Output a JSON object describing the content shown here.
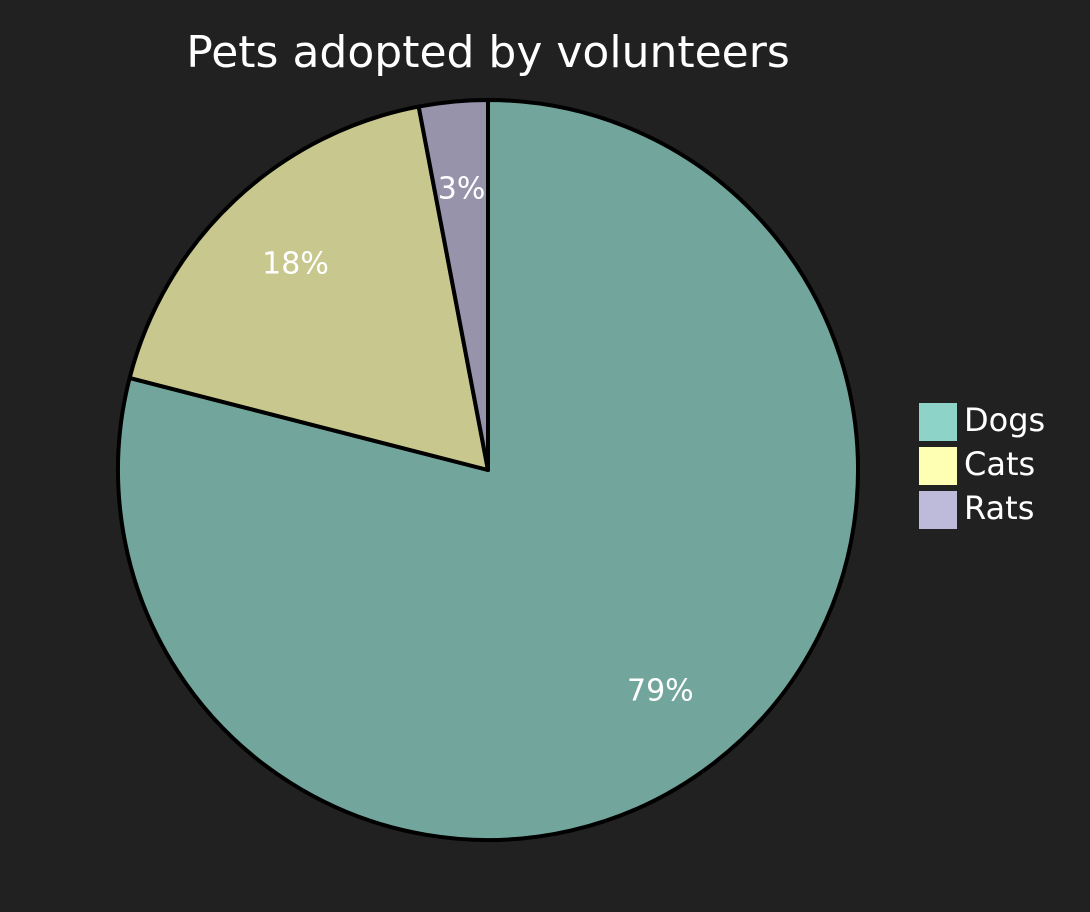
{
  "chart_data": {
    "type": "pie",
    "title": "Pets adopted by volunteers",
    "categories": [
      "Dogs",
      "Cats",
      "Rats"
    ],
    "values": [
      79,
      18,
      3
    ],
    "value_labels": [
      "79%",
      "18%",
      "3%"
    ],
    "colors": [
      "#8dd3c7",
      "#ffffb3",
      "#bebada"
    ],
    "legend": "right"
  }
}
